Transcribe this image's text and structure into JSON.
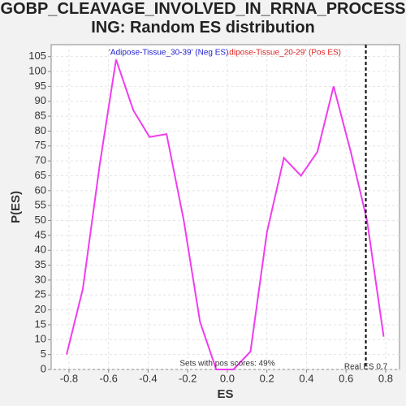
{
  "chart_data": {
    "type": "line",
    "title": "GOBP_CLEAVAGE_INVOLVED_IN_RRNA_PROCESSING: Random ES distribution",
    "xlabel": "ES",
    "ylabel": "P(ES)",
    "x": [
      -0.812,
      -0.73,
      -0.644,
      -0.562,
      -0.475,
      -0.393,
      -0.307,
      -0.22,
      -0.138,
      -0.056,
      0.031,
      0.117,
      0.2,
      0.286,
      0.372,
      0.455,
      0.537,
      0.624,
      0.706,
      0.79
    ],
    "series": [
      {
        "name": "'Adipose-Tissue_30-39' (Neg ES)",
        "color": "#f03cf0",
        "name_color": "#2222cc",
        "values": [
          5,
          27,
          69,
          104,
          87,
          78,
          79,
          50,
          16,
          0,
          0,
          6,
          46,
          71,
          65,
          73,
          95,
          73,
          50,
          11
        ]
      }
    ],
    "second_legend": {
      "text": "'Adipose-Tissue_20-29' (Pos ES)",
      "color": "#dd2222"
    },
    "xlim": [
      -0.89,
      0.87
    ],
    "ylim": [
      0,
      109
    ],
    "xticks": [
      -0.8,
      -0.6,
      -0.4,
      -0.2,
      {
        "value": 0,
        "label": "0.0"
      },
      0.2,
      0.4,
      0.6,
      0.8
    ],
    "yticks": [
      0,
      5,
      10,
      15,
      20,
      25,
      30,
      35,
      40,
      45,
      50,
      55,
      60,
      65,
      70,
      75,
      80,
      85,
      90,
      95,
      100,
      105
    ],
    "grid": true,
    "real_es": 0.7,
    "real_es_label": "Real ES 0.7",
    "annotation": "Sets with pos scores: 49%"
  }
}
